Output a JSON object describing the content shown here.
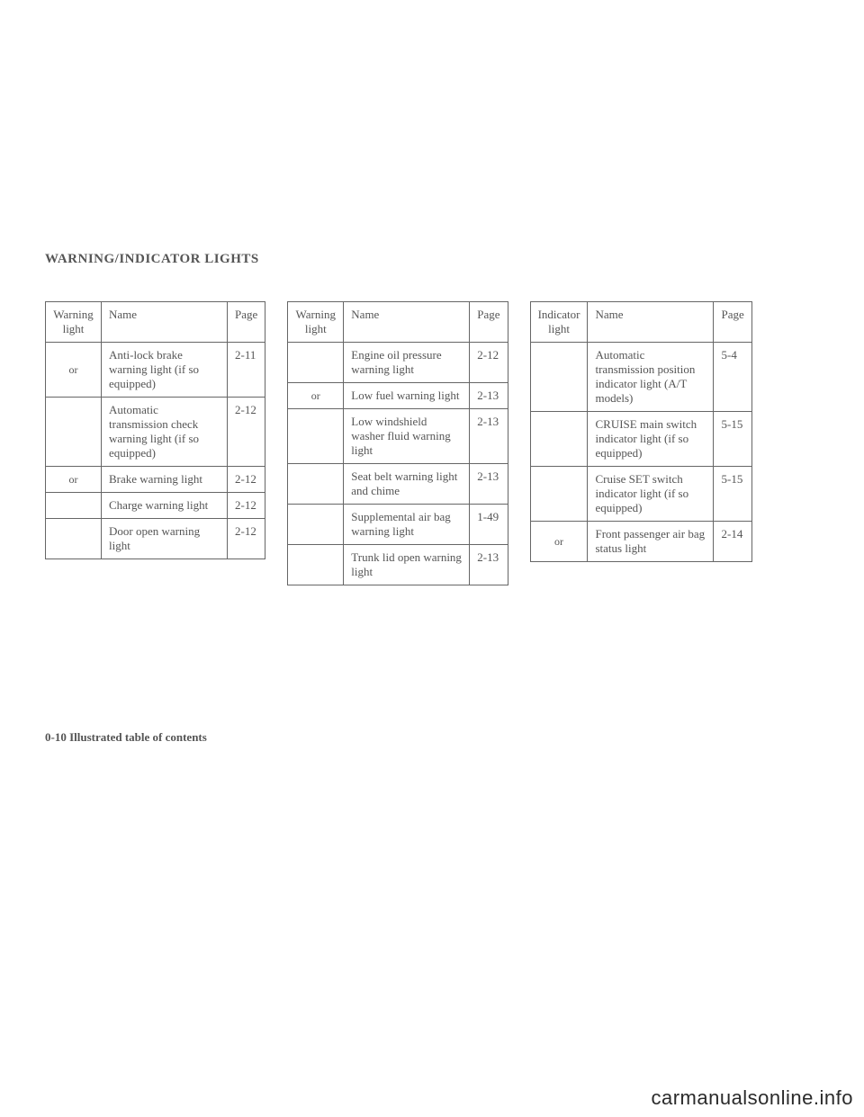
{
  "section_title": "WARNING/INDICATOR LIGHTS",
  "footer": "0-10   Illustrated table of contents",
  "watermark": "carmanualsonline.info",
  "table1": {
    "headers": {
      "light": "Warning light",
      "name": "Name",
      "page": "Page"
    },
    "rows": [
      {
        "light": "or",
        "name": "Anti-lock brake warning light (if so equipped)",
        "page": "2-11"
      },
      {
        "light": "",
        "name": "Automatic transmission check warning light (if so equipped)",
        "page": "2-12"
      },
      {
        "light": "or",
        "name": "Brake warning light",
        "page": "2-12"
      },
      {
        "light": "",
        "name": "Charge warning light",
        "page": "2-12"
      },
      {
        "light": "",
        "name": "Door open warning light",
        "page": "2-12"
      }
    ]
  },
  "table2": {
    "headers": {
      "light": "Warning light",
      "name": "Name",
      "page": "Page"
    },
    "rows": [
      {
        "light": "",
        "name": "Engine oil pressure warning light",
        "page": "2-12"
      },
      {
        "light": "or",
        "name": "Low fuel warning light",
        "page": "2-13"
      },
      {
        "light": "",
        "name": "Low windshield washer fluid warning light",
        "page": "2-13"
      },
      {
        "light": "",
        "name": "Seat belt warning light and chime",
        "page": "2-13"
      },
      {
        "light": "",
        "name": "Supplemental air bag warning light",
        "page": "1-49"
      },
      {
        "light": "",
        "name": "Trunk lid open warning light",
        "page": "2-13"
      }
    ]
  },
  "table3": {
    "headers": {
      "light": "Indicator light",
      "name": "Name",
      "page": "Page"
    },
    "rows": [
      {
        "light": "",
        "name": "Automatic transmission position indicator light (A/T models)",
        "page": "5-4"
      },
      {
        "light": "",
        "name": "CRUISE main switch indicator light (if so equipped)",
        "page": "5-15"
      },
      {
        "light": "",
        "name": "Cruise SET switch indicator light (if so equipped)",
        "page": "5-15"
      },
      {
        "light": "or",
        "name": "Front passenger air bag status light",
        "page": "2-14"
      }
    ]
  }
}
